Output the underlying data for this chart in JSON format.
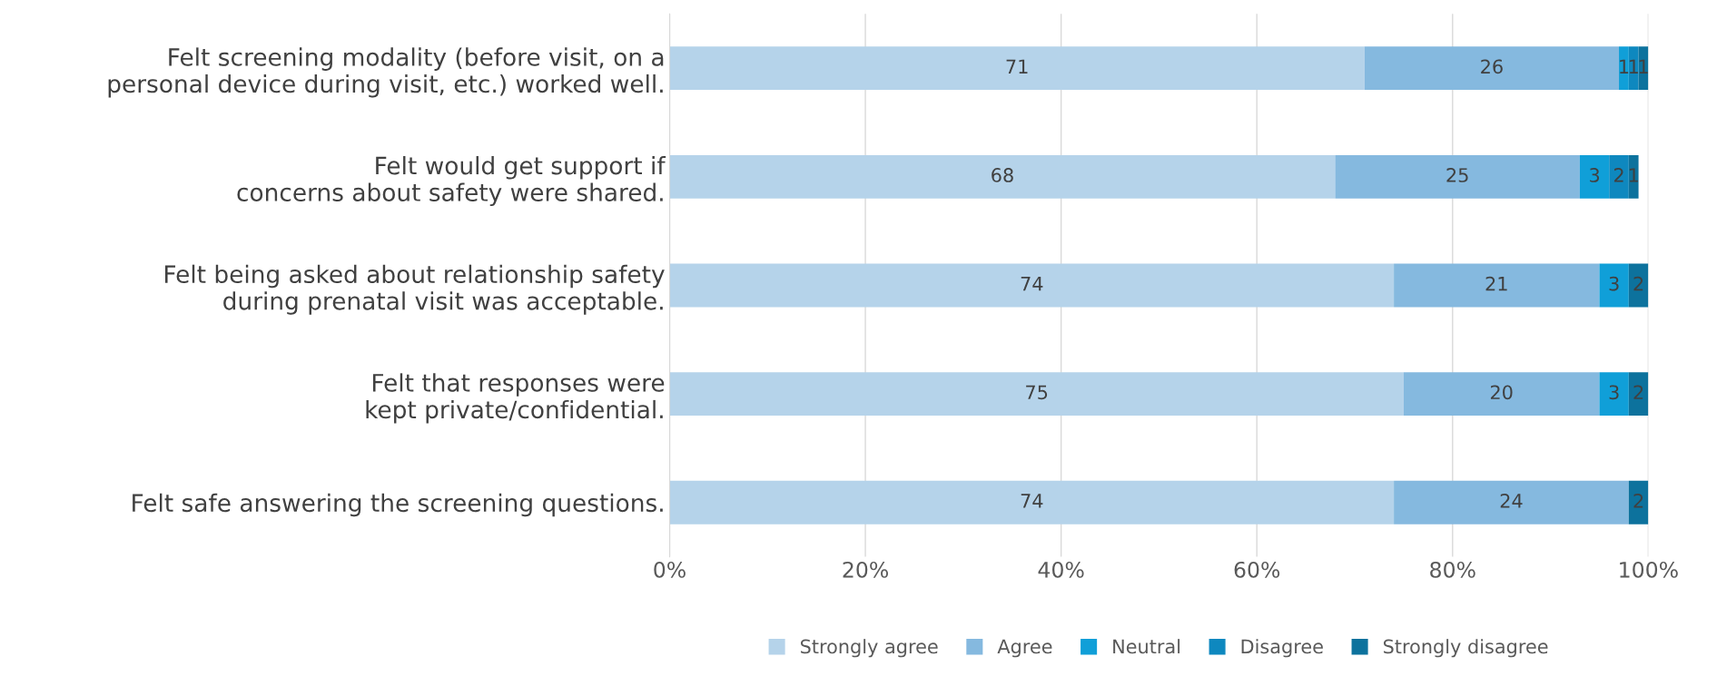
{
  "chart_data": {
    "type": "bar",
    "orientation": "horizontal",
    "stacked": true,
    "categories": [
      "Felt screening modality (before visit, on a personal device during visit, etc.) worked well.",
      "Felt would get support if concerns about safety were shared.",
      "Felt being asked about relationship safety during prenatal visit was acceptable.",
      "Felt that responses were kept private/confidential.",
      "Felt safe answering the screening questions."
    ],
    "series": [
      {
        "name": "Strongly agree",
        "color": "#b5d3ea",
        "values": [
          71,
          68,
          74,
          75,
          74
        ]
      },
      {
        "name": "Agree",
        "color": "#85b9df",
        "values": [
          26,
          25,
          21,
          20,
          24
        ]
      },
      {
        "name": "Neutral",
        "color": "#109fd8",
        "values": [
          1,
          3,
          3,
          3,
          null
        ]
      },
      {
        "name": "Disagree",
        "color": "#0e88bf",
        "values": [
          1,
          2,
          null,
          null,
          null
        ]
      },
      {
        "name": "Strongly disagree",
        "color": "#0d729d",
        "values": [
          1,
          1,
          2,
          2,
          2
        ]
      }
    ],
    "data_labels": true,
    "xlim": [
      0,
      100
    ],
    "xticks": [
      {
        "value": 0,
        "label": "0%"
      },
      {
        "value": 20,
        "label": "20%"
      },
      {
        "value": 40,
        "label": "40%"
      },
      {
        "value": 60,
        "label": "60%"
      },
      {
        "value": 80,
        "label": "80%"
      },
      {
        "value": 100,
        "label": "100%"
      }
    ],
    "grid": "x",
    "legend": "bottom"
  }
}
